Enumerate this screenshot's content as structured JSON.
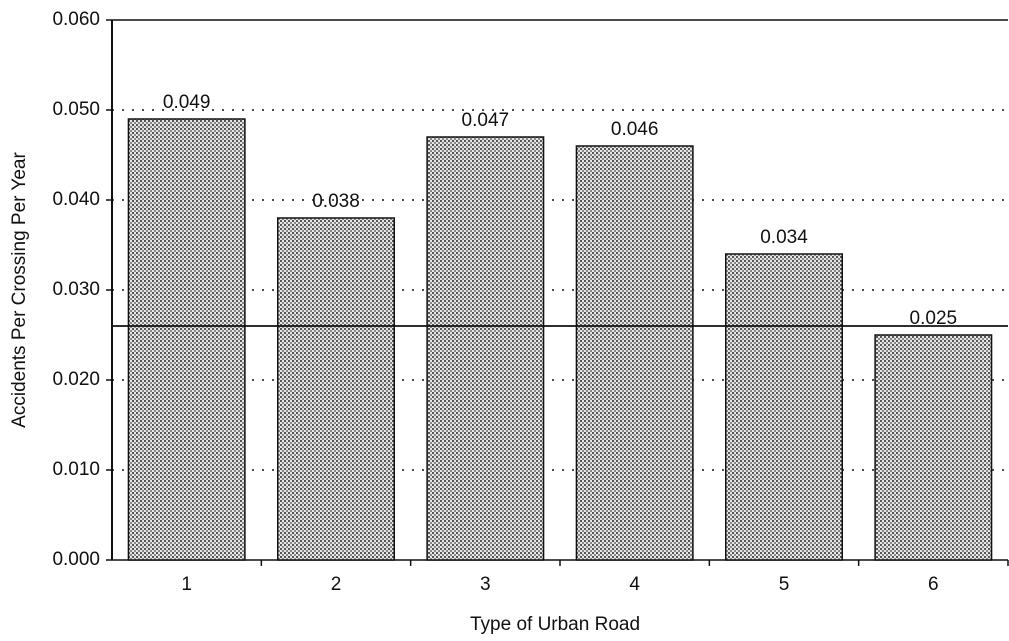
{
  "chart_data": {
    "type": "bar",
    "x_label": "Type of Urban Road",
    "y_label": "Accidents Per Crossing Per Year",
    "categories": [
      "1",
      "2",
      "3",
      "4",
      "5",
      "6"
    ],
    "values": [
      0.049,
      0.038,
      0.047,
      0.046,
      0.034,
      0.025
    ],
    "value_labels": [
      "0.049",
      "0.038",
      "0.047",
      "0.046",
      "0.034",
      "0.025"
    ],
    "color": "#b8b8b8",
    "reference_line": 0.026,
    "ylim": [
      0,
      0.06
    ],
    "yticks": [
      {
        "value": 0,
        "label": "0.000"
      },
      {
        "value": 0.01,
        "label": "0.010"
      },
      {
        "value": 0.02,
        "label": "0.020"
      },
      {
        "value": 0.03,
        "label": "0.030"
      },
      {
        "value": 0.04,
        "label": "0.040"
      },
      {
        "value": 0.05,
        "label": "0.050"
      },
      {
        "value": 0.06,
        "label": "0.060"
      }
    ],
    "grid": true
  }
}
